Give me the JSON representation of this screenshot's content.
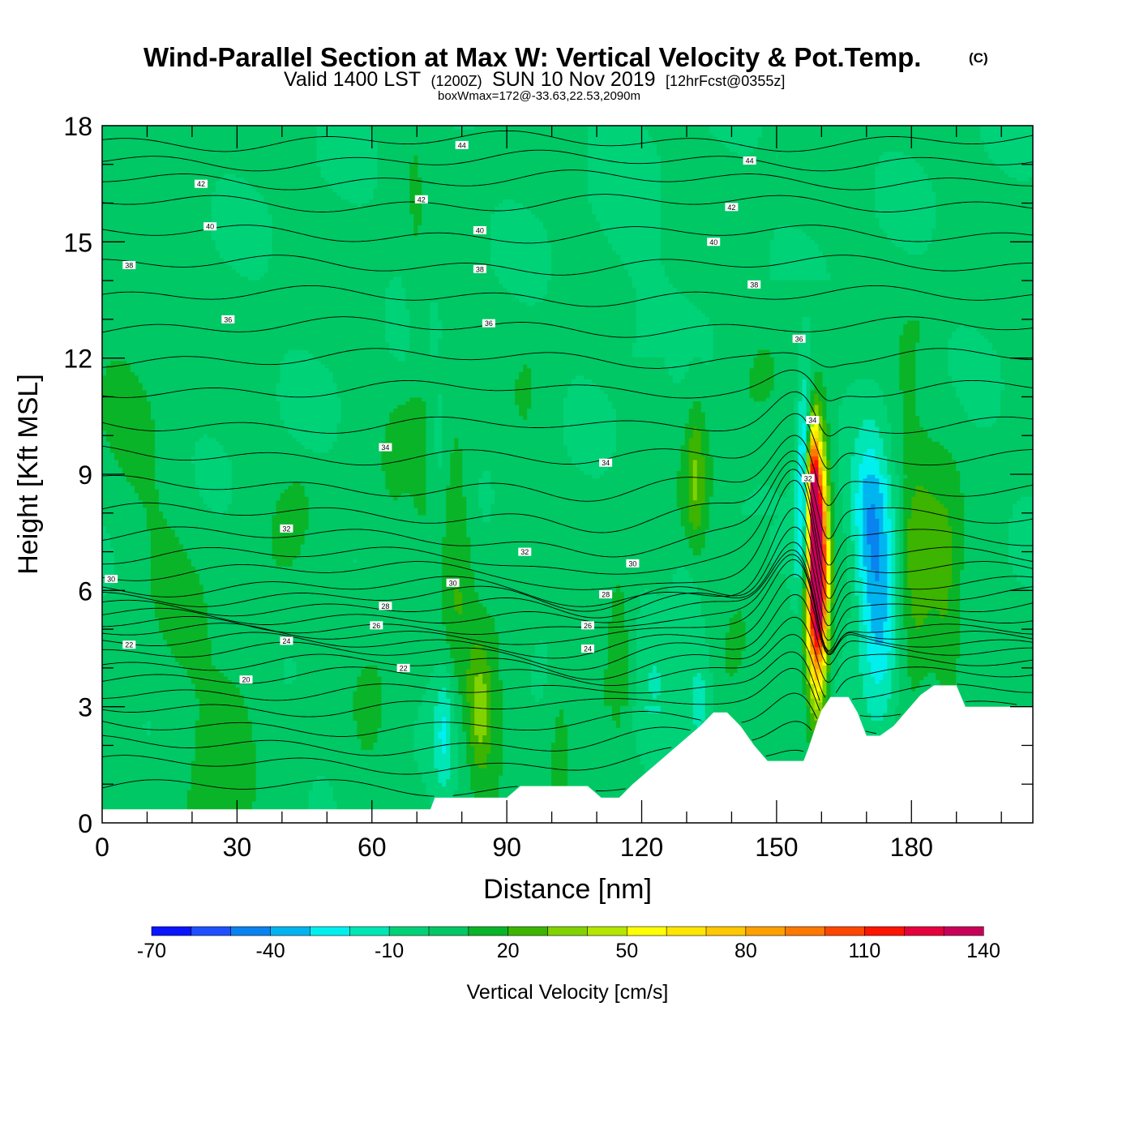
{
  "header": {
    "title": "Wind-Parallel Section at Max W: Vertical Velocity & Pot.Temp.",
    "copyright": "(C)",
    "subtitle_valid": "Valid 1400 LST",
    "subtitle_utc": "(1200Z)",
    "subtitle_date": "SUN 10 Nov 2019",
    "subtitle_fcst": "[12hrFcst@0355z]",
    "box_info": "boxWmax=172@-33.63,22.53,2090m"
  },
  "colorbar": {
    "title": "Vertical Velocity [cm/s]",
    "tick_labels": [
      "-70",
      "-40",
      "-10",
      "20",
      "50",
      "80",
      "110",
      "140"
    ],
    "levels": [
      -70,
      -60,
      -50,
      -40,
      -30,
      -20,
      -10,
      0,
      10,
      20,
      30,
      40,
      50,
      60,
      70,
      80,
      90,
      100,
      110,
      120,
      130,
      140
    ],
    "colors": [
      "#0a14ff",
      "#1e50ff",
      "#0a82f0",
      "#00b4f0",
      "#00f0f0",
      "#00e6b4",
      "#00d278",
      "#00c864",
      "#0ab428",
      "#3cb400",
      "#82d200",
      "#b4e600",
      "#ffff00",
      "#ffe600",
      "#ffc800",
      "#ffa000",
      "#ff7800",
      "#ff4600",
      "#ff1400",
      "#e6003c",
      "#c8005a"
    ]
  },
  "chart_data": {
    "type": "heatmap",
    "title": "Wind-Parallel Section at Max W: Vertical Velocity & Pot.Temp.",
    "xlabel": "Distance [nm]",
    "ylabel": "Height [Kft MSL]",
    "xlim": [
      0,
      207
    ],
    "ylim": [
      0,
      18
    ],
    "x_ticks": [
      0,
      30,
      60,
      90,
      120,
      150,
      180
    ],
    "x_tick_labels": [
      "0",
      "30",
      "60",
      "90",
      "120",
      "150",
      "180"
    ],
    "y_ticks": [
      0,
      3,
      6,
      9,
      12,
      15,
      18
    ],
    "y_tick_labels": [
      "0",
      "3",
      "6",
      "9",
      "12",
      "15",
      "18"
    ],
    "filled_field": "Vertical Velocity [cm/s]",
    "contour_field": "Potential Temperature",
    "max_w": 172,
    "terrain_kft": [
      [
        0,
        0.35
      ],
      [
        73,
        0.35
      ],
      [
        74,
        0.65
      ],
      [
        90,
        0.65
      ],
      [
        93,
        0.95
      ],
      [
        108,
        0.95
      ],
      [
        111,
        0.65
      ],
      [
        115,
        0.65
      ],
      [
        118,
        1.0
      ],
      [
        121,
        1.3
      ],
      [
        124,
        1.6
      ],
      [
        127,
        1.9
      ],
      [
        130,
        2.2
      ],
      [
        133,
        2.5
      ],
      [
        136,
        2.85
      ],
      [
        139,
        2.85
      ],
      [
        142,
        2.5
      ],
      [
        145,
        2.0
      ],
      [
        148,
        1.6
      ],
      [
        152,
        1.6
      ],
      [
        156,
        1.6
      ],
      [
        157,
        1.9
      ],
      [
        158,
        2.25
      ],
      [
        159,
        2.6
      ],
      [
        160,
        2.9
      ],
      [
        162,
        3.25
      ],
      [
        166,
        3.25
      ],
      [
        168,
        2.85
      ],
      [
        170,
        2.25
      ],
      [
        173,
        2.25
      ],
      [
        176,
        2.5
      ],
      [
        179,
        2.9
      ],
      [
        182,
        3.3
      ],
      [
        185,
        3.55
      ],
      [
        190,
        3.55
      ],
      [
        192,
        3.0
      ],
      [
        207,
        3.0
      ]
    ],
    "w_features": [
      {
        "x": 159,
        "z": 6.5,
        "sx": 1.6,
        "sz": 2.1,
        "w": 172
      },
      {
        "x": 158,
        "z": 9.0,
        "sx": 0.9,
        "sz": 1.0,
        "w": 80
      },
      {
        "x": 156.5,
        "z": 9.3,
        "sx": 1.3,
        "sz": 1.6,
        "w": -45
      },
      {
        "x": 155.5,
        "z": 7.2,
        "sx": 1.3,
        "sz": 1.0,
        "w": -25
      },
      {
        "x": 173,
        "z": 6.0,
        "sx": 3.2,
        "sz": 2.3,
        "w": -40
      },
      {
        "x": 170,
        "z": 8.0,
        "sx": 2.5,
        "sz": 1.4,
        "w": -22
      },
      {
        "x": 181,
        "z": 6.5,
        "sx": 3.5,
        "sz": 2.2,
        "w": 28
      },
      {
        "x": 188,
        "z": 5.5,
        "sx": 2.5,
        "sz": 2.5,
        "w": 18
      },
      {
        "x": 84,
        "z": 2.9,
        "sx": 2.0,
        "sz": 1.2,
        "w": 30
      },
      {
        "x": 79,
        "z": 7.0,
        "sx": 2.5,
        "sz": 2.8,
        "w": 16
      },
      {
        "x": 76,
        "z": 2.4,
        "sx": 1.6,
        "sz": 1.2,
        "w": -22
      },
      {
        "x": 75,
        "z": 10.0,
        "sx": 0.6,
        "sz": 0.6,
        "w": -15
      },
      {
        "x": 122,
        "z": 3.5,
        "sx": 4.0,
        "sz": 1.3,
        "w": -18
      },
      {
        "x": 133,
        "z": 3.2,
        "sx": 2.0,
        "sz": 1.0,
        "w": -15
      },
      {
        "x": 130,
        "z": 6.0,
        "sx": 2.5,
        "sz": 1.0,
        "w": -10
      },
      {
        "x": 132,
        "z": 9.0,
        "sx": 1.5,
        "sz": 1.4,
        "w": 22
      },
      {
        "x": 115,
        "z": 4.5,
        "sx": 2.0,
        "sz": 2.0,
        "w": 12
      },
      {
        "x": 102,
        "z": 2.2,
        "sx": 2.0,
        "sz": 1.8,
        "w": 12
      },
      {
        "x": 185,
        "z": 2.8,
        "sx": 3.0,
        "sz": 0.8,
        "w": -10
      }
    ],
    "w_bands": [
      {
        "x0": 3,
        "z0": 13,
        "slope": -1.8,
        "sx": 6.5,
        "zmin": 0.3,
        "zmax": 18,
        "w": 8
      },
      {
        "x0": 30,
        "z0": 3,
        "slope": 2.5,
        "sx": 5,
        "zmin": 0.3,
        "zmax": 9,
        "w": 6
      },
      {
        "x0": 60,
        "z0": 3,
        "slope": 0.9,
        "sx": 4,
        "zmin": 0.3,
        "zmax": 11,
        "w": 6
      },
      {
        "x0": 88,
        "z0": 3,
        "slope": 0.9,
        "sx": 4,
        "zmin": 0.5,
        "zmax": 13,
        "w": 6
      },
      {
        "x0": 125,
        "z0": 6,
        "slope": 3.5,
        "sx": 6,
        "zmin": 3,
        "zmax": 14,
        "w": 6
      },
      {
        "x0": 70,
        "z0": 14,
        "slope": -0.2,
        "sx": 1.5,
        "zmin": 8,
        "zmax": 18,
        "w": 6
      },
      {
        "x0": 138,
        "z0": 3,
        "slope": 1.5,
        "sx": 3,
        "zmin": 2,
        "zmax": 8,
        "w": 5
      },
      {
        "x0": 178,
        "z0": 11,
        "slope": 1.5,
        "sx": 3,
        "zmin": 9,
        "zmax": 13,
        "w": 6
      },
      {
        "x0": 118,
        "z0": 14,
        "slope": -1,
        "sx": 5,
        "zmin": 12,
        "zmax": 18,
        "w": -4
      }
    ],
    "theta_contour_labels": [
      {
        "x": 80,
        "z": 17.5,
        "text": "44"
      },
      {
        "x": 144,
        "z": 17.1,
        "text": "44"
      },
      {
        "x": 22,
        "z": 16.5,
        "text": "42"
      },
      {
        "x": 71,
        "z": 16.1,
        "text": "42"
      },
      {
        "x": 140,
        "z": 15.9,
        "text": "42"
      },
      {
        "x": 24,
        "z": 15.4,
        "text": "40"
      },
      {
        "x": 84,
        "z": 15.3,
        "text": "40"
      },
      {
        "x": 136,
        "z": 15.0,
        "text": "40"
      },
      {
        "x": 6,
        "z": 14.4,
        "text": "38"
      },
      {
        "x": 84,
        "z": 14.3,
        "text": "38"
      },
      {
        "x": 145,
        "z": 13.9,
        "text": "38"
      },
      {
        "x": 28,
        "z": 13.0,
        "text": "36"
      },
      {
        "x": 86,
        "z": 12.9,
        "text": "36"
      },
      {
        "x": 155,
        "z": 12.5,
        "text": "36"
      },
      {
        "x": 63,
        "z": 9.7,
        "text": "34"
      },
      {
        "x": 112,
        "z": 9.3,
        "text": "34"
      },
      {
        "x": 158,
        "z": 10.4,
        "text": "34"
      },
      {
        "x": 157,
        "z": 8.9,
        "text": "32"
      },
      {
        "x": 41,
        "z": 7.6,
        "text": "32"
      },
      {
        "x": 94,
        "z": 7.0,
        "text": "32"
      },
      {
        "x": 2,
        "z": 6.3,
        "text": "30"
      },
      {
        "x": 78,
        "z": 6.2,
        "text": "30"
      },
      {
        "x": 118,
        "z": 6.7,
        "text": "30"
      },
      {
        "x": 63,
        "z": 5.6,
        "text": "28"
      },
      {
        "x": 112,
        "z": 5.9,
        "text": "28"
      },
      {
        "x": 61,
        "z": 5.1,
        "text": "26"
      },
      {
        "x": 108,
        "z": 5.1,
        "text": "26"
      },
      {
        "x": 41,
        "z": 4.7,
        "text": "24"
      },
      {
        "x": 108,
        "z": 4.5,
        "text": "24"
      },
      {
        "x": 6,
        "z": 4.6,
        "text": "22"
      },
      {
        "x": 67,
        "z": 4.0,
        "text": "22"
      },
      {
        "x": 32,
        "z": 3.7,
        "text": "20"
      }
    ]
  }
}
